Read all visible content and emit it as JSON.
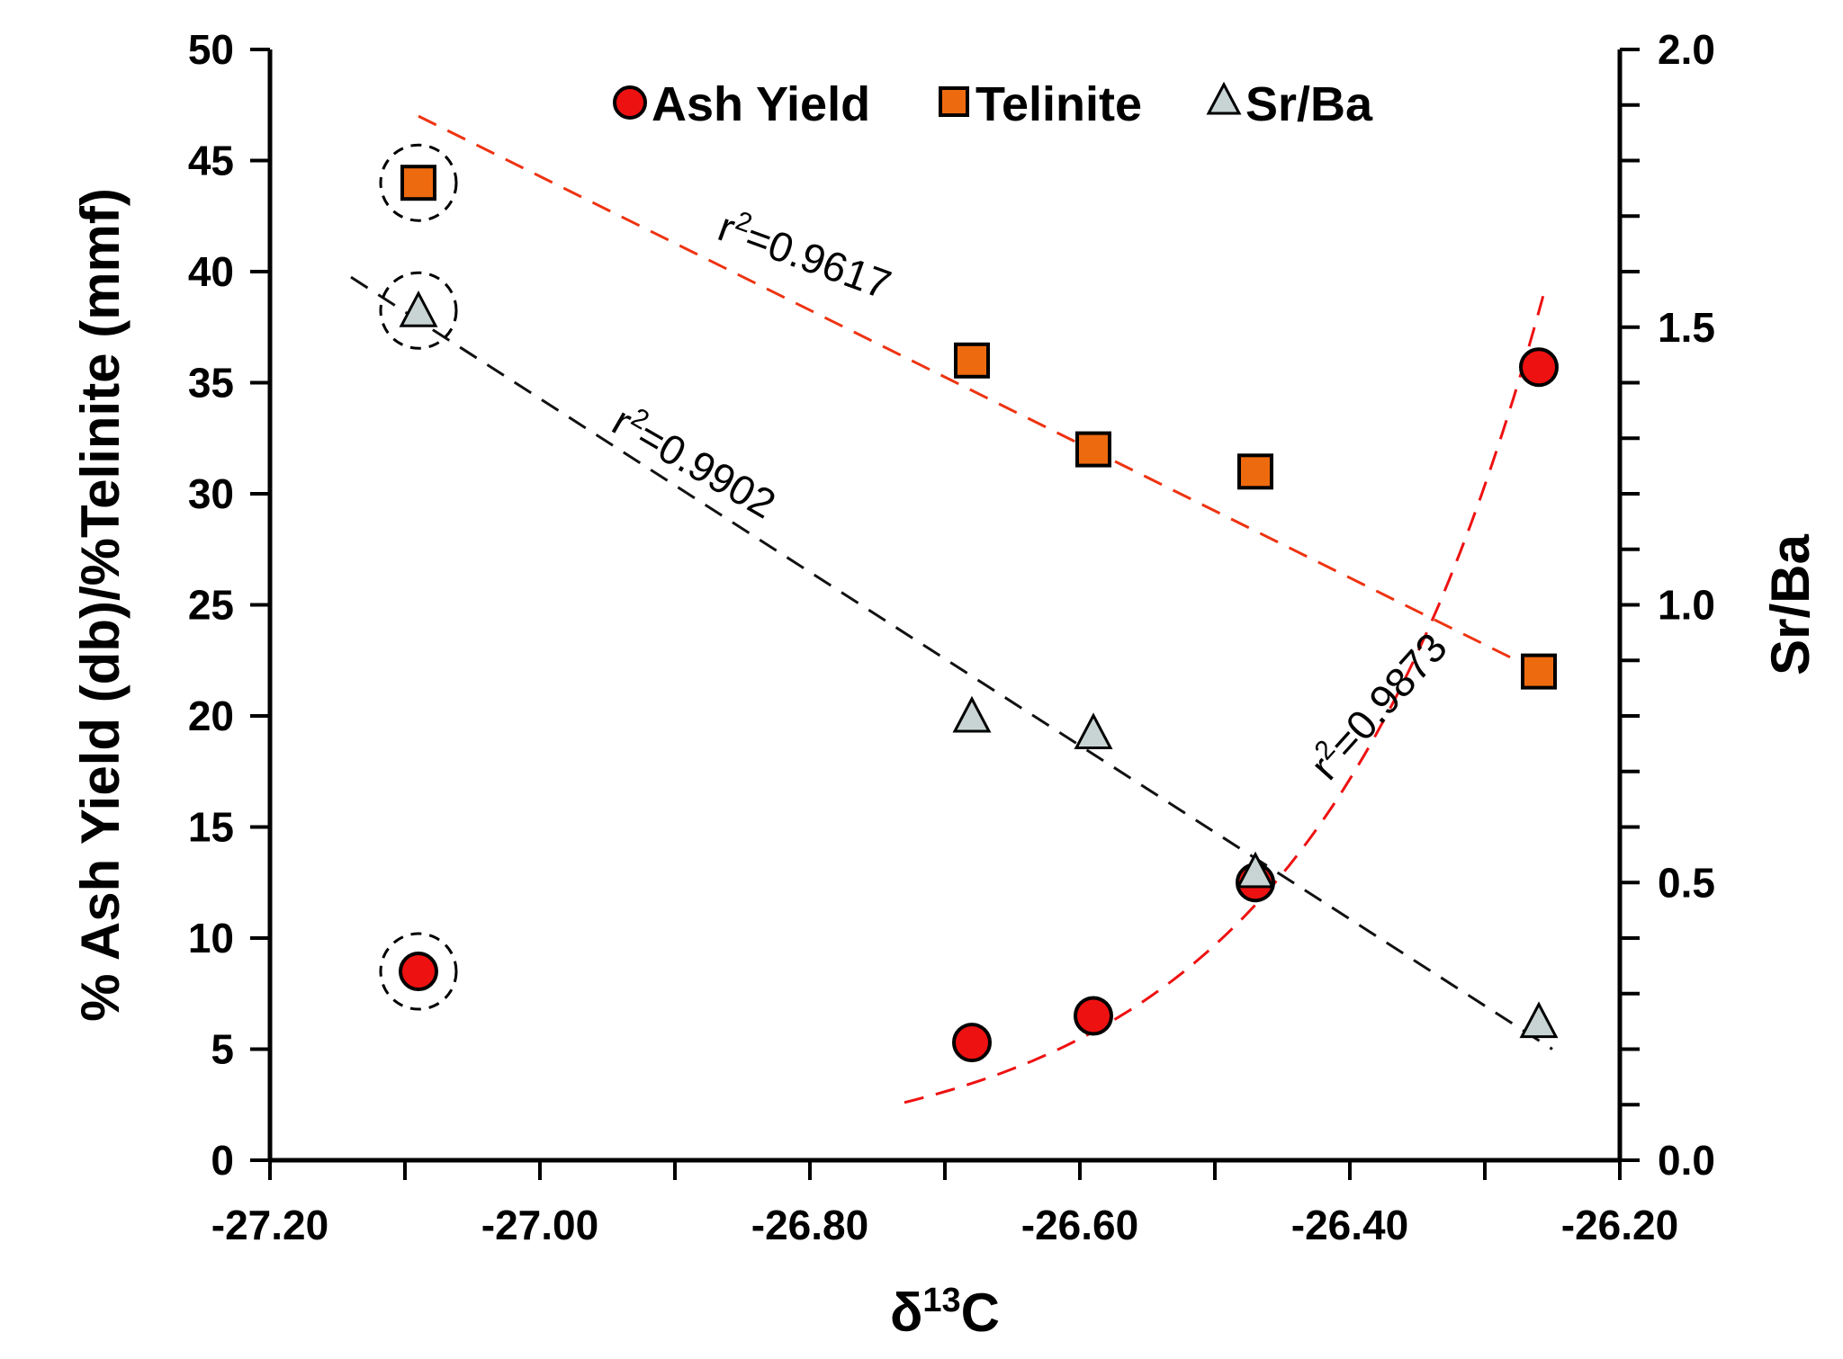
{
  "chart_data": {
    "type": "scatter",
    "title": "",
    "xlabel_main": "δ",
    "xlabel_sup": "13",
    "xlabel_tail": "C",
    "ylabel_left": "% Ash Yield (db)/%Telinite (mmf)",
    "ylabel_right": "Sr/Ba",
    "xlim": [
      -27.2,
      -26.2
    ],
    "ylim_left": [
      0,
      50
    ],
    "ylim_right": [
      0.0,
      2.0
    ],
    "x_ticks": [
      "-27.20",
      "-27.00",
      "-26.80",
      "-26.60",
      "-26.40",
      "-26.20"
    ],
    "x_tick_values": [
      -27.2,
      -27.0,
      -26.8,
      -26.6,
      -26.4,
      -26.2
    ],
    "y_left_ticks": [
      "0",
      "5",
      "10",
      "15",
      "20",
      "25",
      "30",
      "35",
      "40",
      "45",
      "50"
    ],
    "y_left_tick_values": [
      0,
      5,
      10,
      15,
      20,
      25,
      30,
      35,
      40,
      45,
      50
    ],
    "y_right_ticks": [
      "0.0",
      "0.5",
      "1.0",
      "1.5",
      "2.0"
    ],
    "y_right_tick_values": [
      0.0,
      0.5,
      1.0,
      1.5,
      2.0
    ],
    "legend_position": "top-center",
    "series": [
      {
        "name": "Ash Yield",
        "marker": "circle",
        "color": "#ee1111",
        "axis": "left",
        "x": [
          -27.09,
          -26.68,
          -26.59,
          -26.47,
          -26.26
        ],
        "y": [
          8.5,
          5.3,
          6.5,
          12.5,
          35.7
        ]
      },
      {
        "name": "Telinite",
        "marker": "square",
        "color": "#ee6a0f",
        "axis": "left",
        "x": [
          -27.09,
          -26.68,
          -26.59,
          -26.47,
          -26.26
        ],
        "y": [
          44.0,
          36.0,
          32.0,
          31.0,
          22.0
        ]
      },
      {
        "name": "Sr/Ba",
        "marker": "triangle",
        "color": "#c8d4d4",
        "axis": "right",
        "x": [
          -27.09,
          -26.68,
          -26.59,
          -26.47,
          -26.26
        ],
        "y": [
          1.53,
          0.8,
          0.77,
          0.52,
          0.25
        ]
      }
    ],
    "circled_points": [
      {
        "series": "Telinite",
        "x": -27.09
      },
      {
        "series": "Sr/Ba",
        "x": -27.09
      },
      {
        "series": "Ash Yield",
        "x": -27.09
      }
    ],
    "trendlines": [
      {
        "series": "Telinite",
        "kind": "linear",
        "color": "#ee3311",
        "x_range": [
          -27.09,
          -26.25
        ],
        "points": [
          [
            -27.09,
            47.0
          ],
          [
            -26.25,
            21.7
          ]
        ],
        "label": "r²=0.9617",
        "label_prefix": "r",
        "label_sup": "2",
        "label_value": "=0.9617"
      },
      {
        "series": "Sr/Ba",
        "kind": "linear",
        "color": "#111111",
        "axis": "right",
        "x_range": [
          -27.14,
          -26.25
        ],
        "points": [
          [
            -27.14,
            1.59
          ],
          [
            -26.25,
            0.2
          ]
        ],
        "label": "r²=0.9902",
        "label_prefix": "r",
        "label_sup": "2",
        "label_value": "=0.9902"
      },
      {
        "series": "Ash Yield",
        "kind": "exponential",
        "color": "#ee1111",
        "x_range": [
          -26.73,
          -26.255
        ],
        "curve_start": [
          -26.73,
          2.6
        ],
        "curve_end": [
          -26.255,
          39.3
        ],
        "label": "r²=0.9873",
        "label_prefix": "r",
        "label_sup": "2",
        "label_value": "=0.9873"
      }
    ]
  }
}
